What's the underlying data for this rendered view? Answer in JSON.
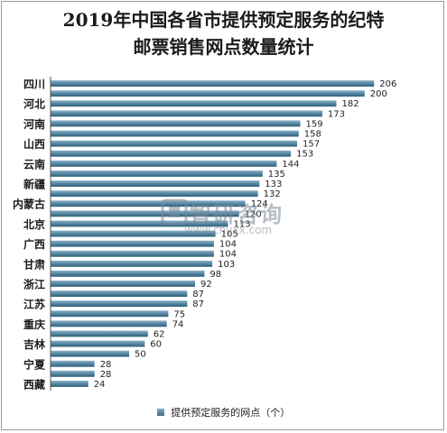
{
  "title_line1": "2019年中国各省市提供预定服务的纪特",
  "title_line2": "邮票销售网点数量统计",
  "watermark": {
    "logo_text": "智研咨询",
    "url": "www.chyxx.com"
  },
  "colors": {
    "bar_top": "#8fb3c8",
    "bar_mid": "#5b8aa6",
    "bar_bottom": "#2f5f7a",
    "label": "#1f1f1f"
  },
  "chart_data": {
    "type": "bar",
    "orientation": "horizontal",
    "categories": [
      "四川",
      "",
      "河北",
      "",
      "河南",
      "",
      "山西",
      "",
      "云南",
      "",
      "新疆",
      "",
      "内蒙古",
      "",
      "北京",
      "",
      "广西",
      "",
      "甘肃",
      "",
      "浙江",
      "",
      "江苏",
      "",
      "重庆",
      "",
      "吉林",
      "",
      "宁夏",
      "",
      "西藏"
    ],
    "series": [
      {
        "name": "提供预定服务的网点（个）",
        "values": [
          206,
          200,
          182,
          173,
          159,
          158,
          157,
          153,
          144,
          135,
          133,
          132,
          124,
          120,
          113,
          105,
          104,
          104,
          103,
          98,
          92,
          87,
          87,
          75,
          74,
          62,
          60,
          50,
          28,
          28,
          24
        ]
      }
    ],
    "xlim": [
      0,
      230
    ],
    "grid": false,
    "legend": "bottom"
  }
}
